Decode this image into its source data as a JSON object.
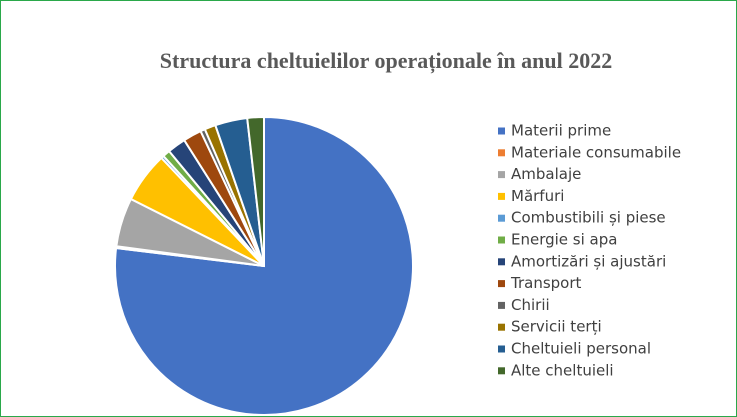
{
  "chart_data": {
    "type": "pie",
    "title": "Structura cheltuielilor operaționale în anul 2022",
    "categories": [
      "Materii prime",
      "Materiale consumabile",
      "Ambalaje",
      "Mărfuri",
      "Combustibili și piese",
      "Energie si apa",
      "Amortizări și ajustări",
      "Transport",
      "Chirii",
      "Servicii terți",
      "Cheltuieli personal",
      "Alte cheltuieli"
    ],
    "values": [
      77,
      0.2,
      5.3,
      5.5,
      0.3,
      0.8,
      2,
      2,
      0.5,
      1.2,
      3.5,
      1.8
    ],
    "colors": [
      "#4472c4",
      "#ed7d31",
      "#a5a5a5",
      "#ffc000",
      "#5b9bd5",
      "#70ad47",
      "#264478",
      "#9e480e",
      "#636363",
      "#997300",
      "#255e91",
      "#43682b"
    ],
    "legend": "right"
  }
}
